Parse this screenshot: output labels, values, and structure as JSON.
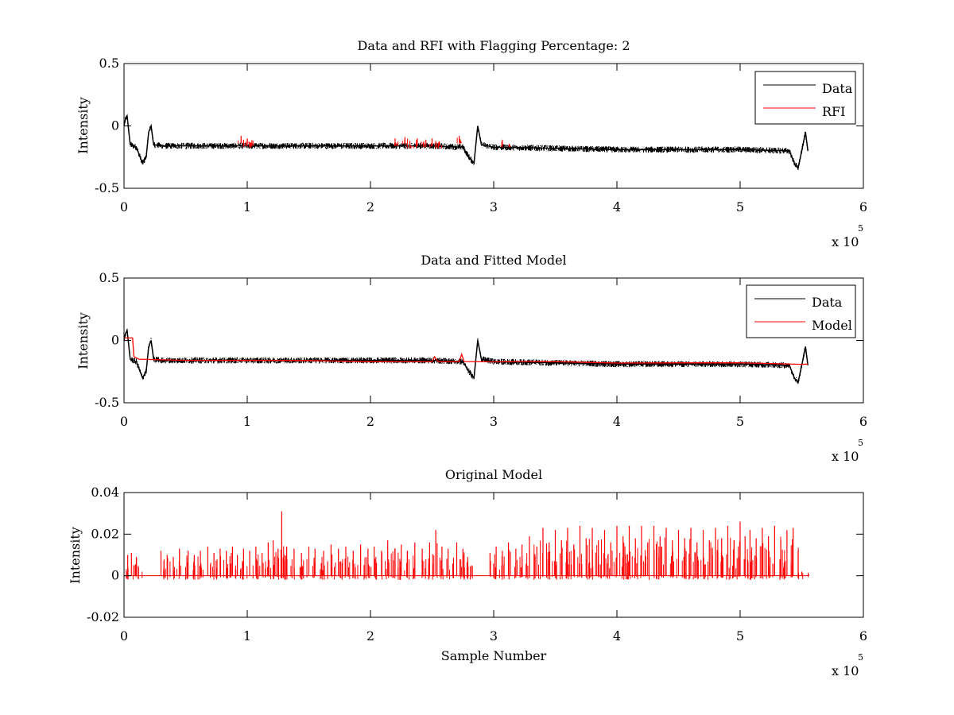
{
  "figure": {
    "background": "#ffffff"
  },
  "colors": {
    "data": "#000000",
    "accent": "#ff0000",
    "axis": "#000000"
  },
  "chart_data": [
    {
      "type": "line",
      "title": "Data and RFI with Flagging Percentage: 2",
      "xlabel": "",
      "ylabel": "Intensity",
      "xlim": [
        0,
        6
      ],
      "ylim": [
        -0.5,
        0.5
      ],
      "xticks": [
        0,
        1,
        2,
        3,
        4,
        5,
        6
      ],
      "xtick_labels": [
        "0",
        "1",
        "2",
        "3",
        "4",
        "5",
        "6"
      ],
      "yticks": [
        -0.5,
        0,
        0.5
      ],
      "ytick_labels": [
        "-0.5",
        "0",
        "0.5"
      ],
      "x_exponent": {
        "base": "x 10",
        "power": "5"
      },
      "legend_position": "top-right",
      "grid": false,
      "series": [
        {
          "name": "Data",
          "color": "#000000",
          "kind": "noisy",
          "noise": 0.025,
          "x": [
            0,
            0.01,
            0.025,
            0.05,
            0.1,
            0.15,
            0.18,
            0.2,
            0.22,
            0.24,
            0.3,
            0.5,
            1.0,
            1.5,
            2.0,
            2.5,
            2.75,
            2.8,
            2.84,
            2.87,
            2.9,
            3.0,
            3.5,
            4.0,
            4.5,
            5.0,
            5.4,
            5.44,
            5.47,
            5.5,
            5.53,
            5.55
          ],
          "y": [
            0,
            0.05,
            0.08,
            -0.15,
            -0.17,
            -0.3,
            -0.25,
            -0.05,
            0.0,
            -0.15,
            -0.16,
            -0.16,
            -0.16,
            -0.16,
            -0.16,
            -0.16,
            -0.17,
            -0.25,
            -0.3,
            0.0,
            -0.15,
            -0.17,
            -0.18,
            -0.19,
            -0.19,
            -0.19,
            -0.2,
            -0.3,
            -0.34,
            -0.2,
            -0.05,
            -0.2
          ]
        },
        {
          "name": "RFI",
          "color": "#ff0000",
          "kind": "spikes",
          "x": [
            0.95,
            0.97,
            1.0,
            2.2,
            2.28,
            2.32,
            2.38,
            2.45,
            2.5,
            2.53,
            2.72,
            3.07
          ],
          "y": [
            -0.08,
            -0.11,
            -0.1,
            -0.1,
            -0.09,
            -0.12,
            -0.1,
            -0.11,
            -0.1,
            -0.12,
            -0.08,
            -0.11
          ]
        }
      ]
    },
    {
      "type": "line",
      "title": "Data and Fitted Model",
      "xlabel": "",
      "ylabel": "Intensity",
      "xlim": [
        0,
        6
      ],
      "ylim": [
        -0.5,
        0.5
      ],
      "xticks": [
        0,
        1,
        2,
        3,
        4,
        5,
        6
      ],
      "xtick_labels": [
        "0",
        "1",
        "2",
        "3",
        "4",
        "5",
        "6"
      ],
      "yticks": [
        -0.5,
        0,
        0.5
      ],
      "ytick_labels": [
        "-0.5",
        "0",
        "0.5"
      ],
      "x_exponent": {
        "base": "x 10",
        "power": "5"
      },
      "legend_position": "top-right",
      "grid": false,
      "series": [
        {
          "name": "Data",
          "color": "#000000",
          "kind": "noisy",
          "noise": 0.025,
          "x": [
            0,
            0.01,
            0.025,
            0.05,
            0.1,
            0.15,
            0.18,
            0.2,
            0.22,
            0.24,
            0.3,
            0.5,
            1.0,
            1.5,
            2.0,
            2.5,
            2.75,
            2.8,
            2.84,
            2.87,
            2.9,
            3.0,
            3.5,
            4.0,
            4.5,
            5.0,
            5.4,
            5.44,
            5.47,
            5.5,
            5.53,
            5.55
          ],
          "y": [
            0,
            0.05,
            0.08,
            -0.15,
            -0.17,
            -0.3,
            -0.25,
            -0.05,
            0.0,
            -0.15,
            -0.16,
            -0.16,
            -0.16,
            -0.16,
            -0.16,
            -0.16,
            -0.17,
            -0.25,
            -0.3,
            0.0,
            -0.15,
            -0.17,
            -0.18,
            -0.19,
            -0.19,
            -0.19,
            -0.2,
            -0.3,
            -0.34,
            -0.2,
            -0.05,
            -0.2
          ]
        },
        {
          "name": "Model",
          "color": "#ff0000",
          "kind": "line",
          "x": [
            0,
            0.07,
            0.08,
            0.12,
            0.5,
            1.0,
            1.5,
            2.0,
            2.5,
            2.52,
            2.55,
            2.72,
            2.74,
            2.76,
            3.0,
            3.2,
            3.5,
            4.0,
            4.5,
            5.0,
            5.5,
            5.55
          ],
          "y": [
            0.02,
            0.02,
            -0.13,
            -0.15,
            -0.16,
            -0.16,
            -0.16,
            -0.17,
            -0.17,
            -0.13,
            -0.17,
            -0.17,
            -0.11,
            -0.17,
            -0.17,
            -0.17,
            -0.17,
            -0.18,
            -0.18,
            -0.18,
            -0.19,
            -0.19
          ]
        }
      ]
    },
    {
      "type": "line",
      "title": "Original Model",
      "xlabel": "Sample Number",
      "ylabel": "Intensity",
      "xlim": [
        0,
        6
      ],
      "ylim": [
        -0.02,
        0.04
      ],
      "xticks": [
        0,
        1,
        2,
        3,
        4,
        5,
        6
      ],
      "xtick_labels": [
        "0",
        "1",
        "2",
        "3",
        "4",
        "5",
        "6"
      ],
      "yticks": [
        -0.02,
        0,
        0.02,
        0.04
      ],
      "ytick_labels": [
        "-0.02",
        "0",
        "0.02",
        "0.04"
      ],
      "x_exponent": {
        "base": "x 10",
        "power": "5"
      },
      "grid": false,
      "series": [
        {
          "color": "#ff0000",
          "kind": "spikes",
          "baseline": 0,
          "x": [
            0.03,
            0.06,
            0.1,
            0.3,
            0.35,
            0.4,
            0.45,
            0.52,
            0.57,
            0.62,
            0.68,
            0.73,
            0.78,
            0.83,
            0.88,
            0.92,
            0.97,
            1.02,
            1.07,
            1.12,
            1.17,
            1.21,
            1.25,
            1.28,
            1.32,
            1.38,
            1.44,
            1.5,
            1.55,
            1.62,
            1.68,
            1.74,
            1.8,
            1.86,
            1.92,
            1.98,
            2.03,
            2.09,
            2.14,
            2.2,
            2.25,
            2.3,
            2.36,
            2.42,
            2.48,
            2.53,
            2.58,
            2.63,
            2.7,
            2.75,
            2.79,
            2.97,
            3.02,
            3.07,
            3.12,
            3.18,
            3.23,
            3.29,
            3.35,
            3.4,
            3.45,
            3.5,
            3.55,
            3.6,
            3.65,
            3.7,
            3.75,
            3.8,
            3.85,
            3.9,
            3.95,
            4.0,
            4.05,
            4.1,
            4.15,
            4.2,
            4.25,
            4.3,
            4.35,
            4.4,
            4.45,
            4.5,
            4.55,
            4.6,
            4.65,
            4.7,
            4.75,
            4.8,
            4.85,
            4.9,
            4.95,
            5.0,
            5.04,
            5.08,
            5.13,
            5.18,
            5.23,
            5.28,
            5.33,
            5.38,
            5.43,
            5.5
          ],
          "y": [
            0.01,
            0.011,
            0.009,
            0.012,
            0.01,
            0.009,
            0.013,
            0.012,
            0.01,
            0.012,
            0.014,
            0.011,
            0.013,
            0.012,
            0.014,
            0.01,
            0.013,
            0.012,
            0.014,
            0.011,
            0.016,
            0.017,
            0.013,
            0.031,
            0.014,
            0.013,
            0.011,
            0.014,
            0.013,
            0.012,
            0.015,
            0.013,
            0.014,
            0.012,
            0.015,
            0.013,
            0.014,
            0.012,
            0.017,
            0.013,
            0.015,
            0.012,
            0.016,
            0.013,
            0.016,
            0.022,
            0.014,
            0.013,
            0.016,
            0.013,
            0.009,
            0.011,
            0.014,
            0.012,
            0.016,
            0.013,
            0.015,
            0.019,
            0.014,
            0.023,
            0.016,
            0.022,
            0.017,
            0.023,
            0.015,
            0.024,
            0.018,
            0.023,
            0.017,
            0.022,
            0.016,
            0.024,
            0.019,
            0.024,
            0.018,
            0.024,
            0.016,
            0.024,
            0.019,
            0.023,
            0.017,
            0.022,
            0.018,
            0.023,
            0.016,
            0.022,
            0.017,
            0.023,
            0.018,
            0.024,
            0.017,
            0.026,
            0.019,
            0.022,
            0.018,
            0.023,
            0.019,
            0.024,
            0.017,
            0.022,
            0.023,
            0.002
          ]
        }
      ]
    }
  ]
}
